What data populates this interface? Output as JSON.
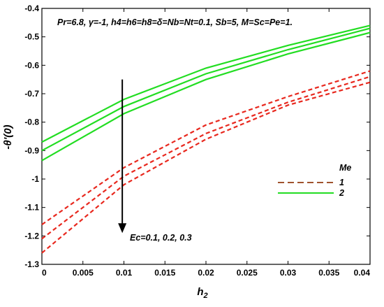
{
  "chart_data": {
    "type": "line",
    "title": "",
    "parameters_text": "Pr=6.8, γ=-1, h4=h6=h8=δ=Nb=Nt=0.1, Sb=5, M=Sc=Pe=1.",
    "xlabel": "h",
    "xlabel_subscript": "2",
    "ylabel": "-θ'(0)",
    "xlim": [
      0,
      0.04
    ],
    "ylim": [
      -1.3,
      -0.4
    ],
    "x_ticks": [
      0,
      0.005,
      0.01,
      0.015,
      0.02,
      0.025,
      0.03,
      0.035,
      0.04
    ],
    "x_tick_labels": [
      "0",
      "0.005",
      "0.01",
      "0.015",
      "0.02",
      "0.025",
      "0.03",
      "0.035",
      "0.04"
    ],
    "y_ticks": [
      -1.3,
      -1.2,
      -1.1,
      -1.0,
      -0.9,
      -0.8,
      -0.7,
      -0.6,
      -0.5,
      -0.4
    ],
    "y_tick_labels": [
      "-1.3",
      "-1.2",
      "-1.1",
      "-1",
      "-0.9",
      "-0.8",
      "-0.7",
      "-0.6",
      "-0.5",
      "-0.4"
    ],
    "grid": false,
    "x": [
      0,
      0.01,
      0.02,
      0.03,
      0.04
    ],
    "series": [
      {
        "group": "1",
        "ec": 0.1,
        "color": "#e8281e",
        "dash": true,
        "values": [
          -1.16,
          -0.96,
          -0.81,
          -0.71,
          -0.62
        ]
      },
      {
        "group": "1",
        "ec": 0.2,
        "color": "#e8281e",
        "dash": true,
        "values": [
          -1.21,
          -0.99,
          -0.84,
          -0.73,
          -0.64
        ]
      },
      {
        "group": "1",
        "ec": 0.3,
        "color": "#e8281e",
        "dash": true,
        "values": [
          -1.26,
          -1.02,
          -0.86,
          -0.74,
          -0.66
        ]
      },
      {
        "group": "2",
        "ec": 0.1,
        "color": "#22dd22",
        "dash": false,
        "values": [
          -0.87,
          -0.72,
          -0.61,
          -0.53,
          -0.46
        ]
      },
      {
        "group": "2",
        "ec": 0.2,
        "color": "#22dd22",
        "dash": false,
        "values": [
          -0.9,
          -0.745,
          -0.63,
          -0.545,
          -0.47
        ]
      },
      {
        "group": "2",
        "ec": 0.3,
        "color": "#22dd22",
        "dash": false,
        "values": [
          -0.935,
          -0.77,
          -0.65,
          -0.56,
          -0.485
        ]
      }
    ],
    "legend": {
      "title": "Me",
      "placement": "right",
      "entries": [
        {
          "label": "1",
          "color": "#a0522d",
          "dash": true
        },
        {
          "label": "2",
          "color": "#22dd22",
          "dash": false
        }
      ]
    },
    "annotation": {
      "text": "Ec=0.1, 0.2, 0.3",
      "arrow_x": 0.0098,
      "arrow_from_y": -0.65,
      "arrow_to_y": -1.19
    },
    "colors": {
      "group_1": "#e8281e",
      "group_1_alt": "#a0522d",
      "group_2": "#22dd22",
      "axes": "#000000"
    }
  }
}
